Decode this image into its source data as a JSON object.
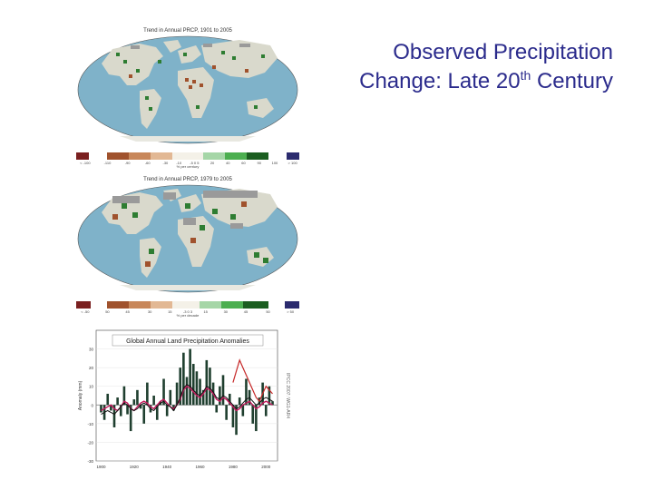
{
  "slide": {
    "title_line1": "Observed Precipitation",
    "title_line2_pre": "Change: Late 20",
    "title_line2_sup": "th",
    "title_line2_post": " Century"
  },
  "map1": {
    "title": "Trend in Annual PRCP, 1901 to 2005",
    "legend_ticks": [
      "< -100",
      "-110",
      "-90",
      "-60",
      "-30",
      "-10",
      "-5 0 5",
      "20",
      "40",
      "60",
      "90",
      "100",
      "> 100"
    ],
    "legend_unit": "% per century"
  },
  "map2": {
    "title": "Trend in Annual PRCP, 1979 to 2005",
    "legend_ticks": [
      "< -50",
      "50",
      "45",
      "30",
      "15",
      "-3 0 3",
      "15",
      "30",
      "45",
      "50",
      "> 50"
    ],
    "legend_unit": "% per decade"
  },
  "colors": {
    "title_text": "#2b2b8c",
    "ocean": "#7fb2c9",
    "land": "#d9d9cc",
    "no_data": "#9a9a9a",
    "wetter": "#2e7d32",
    "drier": "#a0522d",
    "legend_left_end": "#7a1f1f",
    "legend_right_end": "#2b2b6e",
    "series_bars": "#1f3f2f",
    "series_magenta": "#c2185b",
    "series_red": "#c62828",
    "series_black": "#111111"
  },
  "chart_data": {
    "type": "bar",
    "title": "Global Annual Land Precipitation Anomalies",
    "ylabel": "Anomaly (mm)",
    "side_note": "IPCC 2007: WG1-AR4",
    "x_ticks": [
      "1900",
      "1920",
      "1940",
      "1960",
      "1980",
      "2000"
    ],
    "y_ticks": [
      "30",
      "20",
      "10",
      "0",
      "-10",
      "-20",
      "-30"
    ],
    "ylim": [
      -30,
      40
    ],
    "grid": true,
    "x": [
      1900,
      1902,
      1904,
      1906,
      1908,
      1910,
      1912,
      1914,
      1916,
      1918,
      1920,
      1922,
      1924,
      1926,
      1928,
      1930,
      1932,
      1934,
      1936,
      1938,
      1940,
      1942,
      1944,
      1946,
      1948,
      1950,
      1952,
      1954,
      1956,
      1958,
      1960,
      1962,
      1964,
      1966,
      1968,
      1970,
      1972,
      1974,
      1976,
      1978,
      1980,
      1982,
      1984,
      1986,
      1988,
      1990,
      1992,
      1994,
      1996,
      1998,
      2000,
      2002,
      2004
    ],
    "series": [
      {
        "values": [
          -4,
          -8,
          6,
          -3,
          -12,
          4,
          -6,
          10,
          -5,
          -14,
          3,
          8,
          -2,
          -10,
          12,
          -4,
          5,
          -8,
          2,
          14,
          -6,
          8,
          -3,
          12,
          20,
          28,
          15,
          30,
          22,
          18,
          14,
          8,
          24,
          20,
          12,
          -4,
          10,
          16,
          -8,
          6,
          -12,
          -16,
          4,
          -6,
          14,
          8,
          -10,
          -14,
          4,
          12,
          -6,
          10,
          2
        ]
      },
      {
        "values": [
          -3,
          -2,
          -1,
          0,
          -2,
          -3,
          -1,
          2,
          1,
          -2,
          -3,
          -1,
          1,
          2,
          1,
          -1,
          -2,
          0,
          2,
          3,
          1,
          -1,
          -2,
          0,
          3,
          8,
          10,
          9,
          7,
          5,
          4,
          6,
          9,
          8,
          6,
          3,
          2,
          4,
          3,
          1,
          -1,
          -3,
          -2,
          0,
          1,
          2,
          0,
          -2,
          -1,
          1,
          2,
          1,
          0
        ]
      },
      {
        "values": [
          -5,
          -4,
          -3,
          -4,
          -5,
          -3,
          -1,
          1,
          0,
          -2,
          -3,
          -2,
          0,
          1,
          0,
          -2,
          -3,
          -1,
          1,
          2,
          0,
          -1,
          -3,
          0,
          4,
          9,
          11,
          10,
          8,
          6,
          5,
          7,
          10,
          9,
          7,
          4,
          3,
          5,
          4,
          2,
          0,
          -2,
          -1,
          1,
          3,
          4,
          2,
          0,
          1,
          3,
          4,
          3,
          2
        ]
      },
      {
        "values": [
          null,
          null,
          null,
          null,
          null,
          null,
          null,
          null,
          null,
          null,
          null,
          null,
          null,
          null,
          null,
          null,
          null,
          null,
          null,
          null,
          null,
          null,
          null,
          null,
          null,
          null,
          null,
          null,
          null,
          null,
          null,
          null,
          null,
          null,
          null,
          null,
          null,
          null,
          null,
          null,
          12,
          18,
          24,
          20,
          16,
          12,
          8,
          4,
          2,
          6,
          10,
          8,
          6
        ]
      }
    ]
  }
}
